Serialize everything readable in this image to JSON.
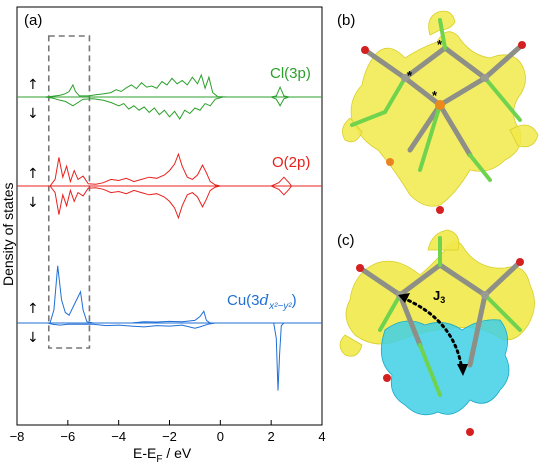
{
  "figure": {
    "panel_a": "(a)",
    "panel_b": "(b)",
    "panel_c": "(c)",
    "exchange_label": "J",
    "exchange_sub": "3",
    "spin_up": "↑",
    "spin_down": "↓",
    "star": "*"
  },
  "colors": {
    "cl": "#2ca02c",
    "o": "#e8211d",
    "cu": "#1f6fd6",
    "isosurface_yellow": "#f1e94a",
    "isosurface_cyan": "#3fd0e6",
    "axis": "#000000",
    "dashed_box": "#777777"
  },
  "chart_data": {
    "type": "line",
    "xlabel": "E-EF / eV",
    "ylabel": "Density of states",
    "xlim": [
      -8,
      4
    ],
    "x_ticks": [
      -8,
      -6,
      -4,
      -2,
      0,
      2,
      4
    ],
    "x_tick_labels": [
      "−8",
      "−6",
      "−4",
      "−2",
      "0",
      "2",
      "4"
    ],
    "highlight_region": [
      -6.75,
      -5.15
    ],
    "series": [
      {
        "name": "Cl(3p)",
        "color": "#2ca02c",
        "up": [
          [
            -8,
            0
          ],
          [
            -6.9,
            0
          ],
          [
            -6.6,
            0.03
          ],
          [
            -6.3,
            0.08
          ],
          [
            -6.1,
            0.15
          ],
          [
            -5.95,
            0.25
          ],
          [
            -5.8,
            0.55
          ],
          [
            -5.7,
            0.25
          ],
          [
            -5.55,
            0.05
          ],
          [
            -5.2,
            0.05
          ],
          [
            -4.9,
            0.1
          ],
          [
            -4.6,
            0.14
          ],
          [
            -4.3,
            0.2
          ],
          [
            -4.1,
            0.33
          ],
          [
            -3.9,
            0.25
          ],
          [
            -3.7,
            0.42
          ],
          [
            -3.5,
            0.55
          ],
          [
            -3.3,
            0.38
          ],
          [
            -3.1,
            0.65
          ],
          [
            -2.9,
            0.45
          ],
          [
            -2.7,
            0.5
          ],
          [
            -2.5,
            0.4
          ],
          [
            -2.3,
            0.7
          ],
          [
            -2.1,
            0.55
          ],
          [
            -1.9,
            0.85
          ],
          [
            -1.7,
            0.6
          ],
          [
            -1.5,
            0.75
          ],
          [
            -1.3,
            0.55
          ],
          [
            -1.1,
            0.9
          ],
          [
            -0.9,
            0.6
          ],
          [
            -0.75,
            1.0
          ],
          [
            -0.6,
            0.4
          ],
          [
            -0.45,
            0.9
          ],
          [
            -0.3,
            0.2
          ],
          [
            -0.1,
            0.02
          ],
          [
            0.3,
            0
          ],
          [
            2.0,
            0
          ],
          [
            2.2,
            0.05
          ],
          [
            2.35,
            0.45
          ],
          [
            2.5,
            0.05
          ],
          [
            2.7,
            0
          ],
          [
            4,
            0
          ]
        ],
        "down": [
          [
            -8,
            0
          ],
          [
            -6.9,
            0
          ],
          [
            -6.6,
            -0.05
          ],
          [
            -6.3,
            -0.15
          ],
          [
            -6.1,
            -0.2
          ],
          [
            -5.95,
            -0.3
          ],
          [
            -5.8,
            -0.4
          ],
          [
            -5.6,
            -0.25
          ],
          [
            -5.4,
            -0.1
          ],
          [
            -5.0,
            -0.08
          ],
          [
            -4.6,
            -0.15
          ],
          [
            -4.3,
            -0.25
          ],
          [
            -4.0,
            -0.4
          ],
          [
            -3.8,
            -0.3
          ],
          [
            -3.6,
            -0.55
          ],
          [
            -3.4,
            -0.4
          ],
          [
            -3.2,
            -0.6
          ],
          [
            -3.0,
            -0.45
          ],
          [
            -2.8,
            -0.7
          ],
          [
            -2.6,
            -0.5
          ],
          [
            -2.4,
            -0.8
          ],
          [
            -2.2,
            -0.6
          ],
          [
            -2.0,
            -0.9
          ],
          [
            -1.8,
            -0.65
          ],
          [
            -1.6,
            -1.0
          ],
          [
            -1.4,
            -0.6
          ],
          [
            -1.2,
            -0.75
          ],
          [
            -1.0,
            -0.5
          ],
          [
            -0.8,
            -0.6
          ],
          [
            -0.6,
            -0.3
          ],
          [
            -0.4,
            -0.4
          ],
          [
            -0.2,
            -0.1
          ],
          [
            0.1,
            0
          ],
          [
            2.0,
            0
          ],
          [
            2.2,
            -0.1
          ],
          [
            2.35,
            -0.4
          ],
          [
            2.5,
            -0.08
          ],
          [
            2.7,
            0
          ],
          [
            4,
            0
          ]
        ]
      },
      {
        "name": "O(2p)",
        "color": "#e8211d",
        "up": [
          [
            -8,
            0
          ],
          [
            -6.7,
            0
          ],
          [
            -6.5,
            0.3
          ],
          [
            -6.35,
            1.3
          ],
          [
            -6.2,
            0.4
          ],
          [
            -6.05,
            0.9
          ],
          [
            -5.9,
            0.2
          ],
          [
            -5.75,
            0.7
          ],
          [
            -5.6,
            0.3
          ],
          [
            -5.4,
            0.45
          ],
          [
            -5.2,
            0.1
          ],
          [
            -4.9,
            0.08
          ],
          [
            -4.6,
            0.15
          ],
          [
            -4.3,
            0.3
          ],
          [
            -4.0,
            0.25
          ],
          [
            -3.7,
            0.35
          ],
          [
            -3.4,
            0.2
          ],
          [
            -3.1,
            0.3
          ],
          [
            -2.8,
            0.4
          ],
          [
            -2.5,
            0.35
          ],
          [
            -2.2,
            0.5
          ],
          [
            -2.0,
            0.7
          ],
          [
            -1.8,
            1.0
          ],
          [
            -1.65,
            1.45
          ],
          [
            -1.5,
            0.9
          ],
          [
            -1.3,
            0.4
          ],
          [
            -1.1,
            0.3
          ],
          [
            -0.9,
            0.5
          ],
          [
            -0.7,
            0.95
          ],
          [
            -0.55,
            0.6
          ],
          [
            -0.4,
            0.2
          ],
          [
            -0.2,
            0.05
          ],
          [
            0,
            0
          ],
          [
            2.0,
            0
          ],
          [
            2.3,
            0.15
          ],
          [
            2.5,
            0.4
          ],
          [
            2.7,
            0.15
          ],
          [
            2.8,
            0
          ],
          [
            4,
            0
          ]
        ],
        "down": [
          [
            -8,
            0
          ],
          [
            -6.7,
            0
          ],
          [
            -6.5,
            -0.3
          ],
          [
            -6.35,
            -1.3
          ],
          [
            -6.2,
            -0.4
          ],
          [
            -6.05,
            -0.9
          ],
          [
            -5.9,
            -0.2
          ],
          [
            -5.75,
            -0.7
          ],
          [
            -5.6,
            -0.3
          ],
          [
            -5.4,
            -0.45
          ],
          [
            -5.2,
            -0.1
          ],
          [
            -4.9,
            -0.08
          ],
          [
            -4.6,
            -0.15
          ],
          [
            -4.3,
            -0.3
          ],
          [
            -4.0,
            -0.25
          ],
          [
            -3.7,
            -0.35
          ],
          [
            -3.4,
            -0.2
          ],
          [
            -3.1,
            -0.3
          ],
          [
            -2.8,
            -0.4
          ],
          [
            -2.5,
            -0.35
          ],
          [
            -2.2,
            -0.5
          ],
          [
            -2.0,
            -0.7
          ],
          [
            -1.8,
            -1.0
          ],
          [
            -1.65,
            -1.45
          ],
          [
            -1.5,
            -0.9
          ],
          [
            -1.3,
            -0.4
          ],
          [
            -1.1,
            -0.3
          ],
          [
            -0.9,
            -0.5
          ],
          [
            -0.7,
            -0.95
          ],
          [
            -0.55,
            -0.6
          ],
          [
            -0.4,
            -0.2
          ],
          [
            -0.2,
            -0.05
          ],
          [
            0,
            0
          ],
          [
            2.0,
            0
          ],
          [
            2.3,
            -0.15
          ],
          [
            2.5,
            -0.4
          ],
          [
            2.7,
            -0.15
          ],
          [
            2.8,
            0
          ],
          [
            4,
            0
          ]
        ]
      },
      {
        "name": "Cu(3dx²−y²)",
        "label_base": "Cu(3",
        "label_d": "d",
        "label_sub": "x²−y²",
        "label_close": ")",
        "color": "#1f6fd6",
        "up": [
          [
            -8,
            0
          ],
          [
            -6.7,
            0
          ],
          [
            -6.55,
            0.5
          ],
          [
            -6.4,
            2.2
          ],
          [
            -6.25,
            0.9
          ],
          [
            -6.1,
            0.4
          ],
          [
            -5.95,
            0.3
          ],
          [
            -5.8,
            0.6
          ],
          [
            -5.6,
            1.0
          ],
          [
            -5.5,
            1.2
          ],
          [
            -5.4,
            0.5
          ],
          [
            -5.25,
            0.05
          ],
          [
            -5.0,
            0
          ],
          [
            -3.5,
            0
          ],
          [
            -3.0,
            0.05
          ],
          [
            -2.5,
            0.04
          ],
          [
            -2.0,
            0.06
          ],
          [
            -1.5,
            0.05
          ],
          [
            -1.0,
            0.1
          ],
          [
            -0.8,
            0.25
          ],
          [
            -0.65,
            0.45
          ],
          [
            -0.55,
            0.1
          ],
          [
            -0.4,
            0
          ],
          [
            4,
            0
          ]
        ],
        "down": [
          [
            -8,
            0
          ],
          [
            -6.8,
            0
          ],
          [
            -6.6,
            -0.05
          ],
          [
            -6.3,
            -0.08
          ],
          [
            -6.0,
            -0.05
          ],
          [
            -5.0,
            -0.05
          ],
          [
            -4.5,
            -0.1
          ],
          [
            -4.0,
            -0.08
          ],
          [
            -3.5,
            -0.12
          ],
          [
            -3.0,
            -0.15
          ],
          [
            -2.5,
            -0.1
          ],
          [
            -2.0,
            -0.12
          ],
          [
            -1.5,
            -0.08
          ],
          [
            -1.0,
            -0.2
          ],
          [
            -0.8,
            -0.15
          ],
          [
            -0.5,
            -0.05
          ],
          [
            -0.2,
            0
          ],
          [
            2.1,
            0
          ],
          [
            2.2,
            -0.6
          ],
          [
            2.27,
            -2.6
          ],
          [
            2.33,
            -1.2
          ],
          [
            2.4,
            -0.1
          ],
          [
            2.5,
            0
          ],
          [
            4,
            0
          ]
        ]
      }
    ]
  }
}
